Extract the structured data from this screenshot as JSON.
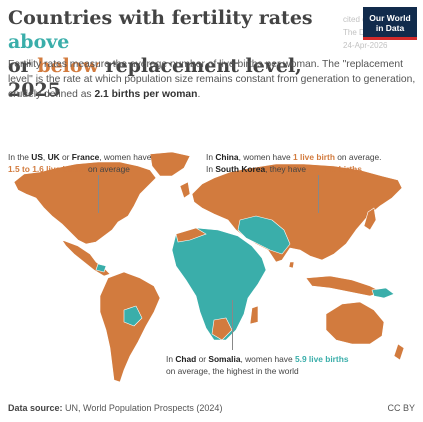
{
  "title": {
    "part1": "Countries with fertility rates ",
    "word_above": "above",
    "part2": "or ",
    "word_below": "below",
    "part3": " replacement level, 2025"
  },
  "subtitle": {
    "text1": "Fertility rates measure the average number of live births per woman. The \"replacement level\" is the rate at which population size remains constant from generation to generation, crudely defined as ",
    "bold": "2.1 births per woman",
    "text2": "."
  },
  "watermark": {
    "line1": "cited on",
    "line2": "The Day Stu",
    "line3": "24-Apr-2026"
  },
  "logo": {
    "line1": "Our World",
    "line2": "in Data"
  },
  "annotations": {
    "us": {
      "pre": "In the ",
      "c1": "US",
      "sep1": ", ",
      "c2": "UK",
      "sep2": " or ",
      "c3": "France",
      "post": ", women have",
      "value": "1.5 to 1.6 live births",
      "tail": " on average"
    },
    "china": {
      "pre": "In ",
      "c1": "China",
      "mid": ", women have ",
      "value1": "1 live birth",
      "post": " on average.",
      "pre2": "In ",
      "c2": "South Korea",
      "mid2": ", they have ",
      "value2": "0.8 live births"
    },
    "chad": {
      "pre": "In ",
      "c1": "Chad",
      "sep": " or ",
      "c2": "Somalia",
      "mid": ", women have ",
      "value": "5.9 live births",
      "tail": "on average, the highest in the world"
    }
  },
  "legend_colors": {
    "above": "#3aaeaa",
    "below": "#d27b3e",
    "border": "#ffffff"
  },
  "footer": {
    "source_label": "Data source:",
    "source_text": " UN, World Population Prospects (2024)",
    "license": "CC BY"
  }
}
